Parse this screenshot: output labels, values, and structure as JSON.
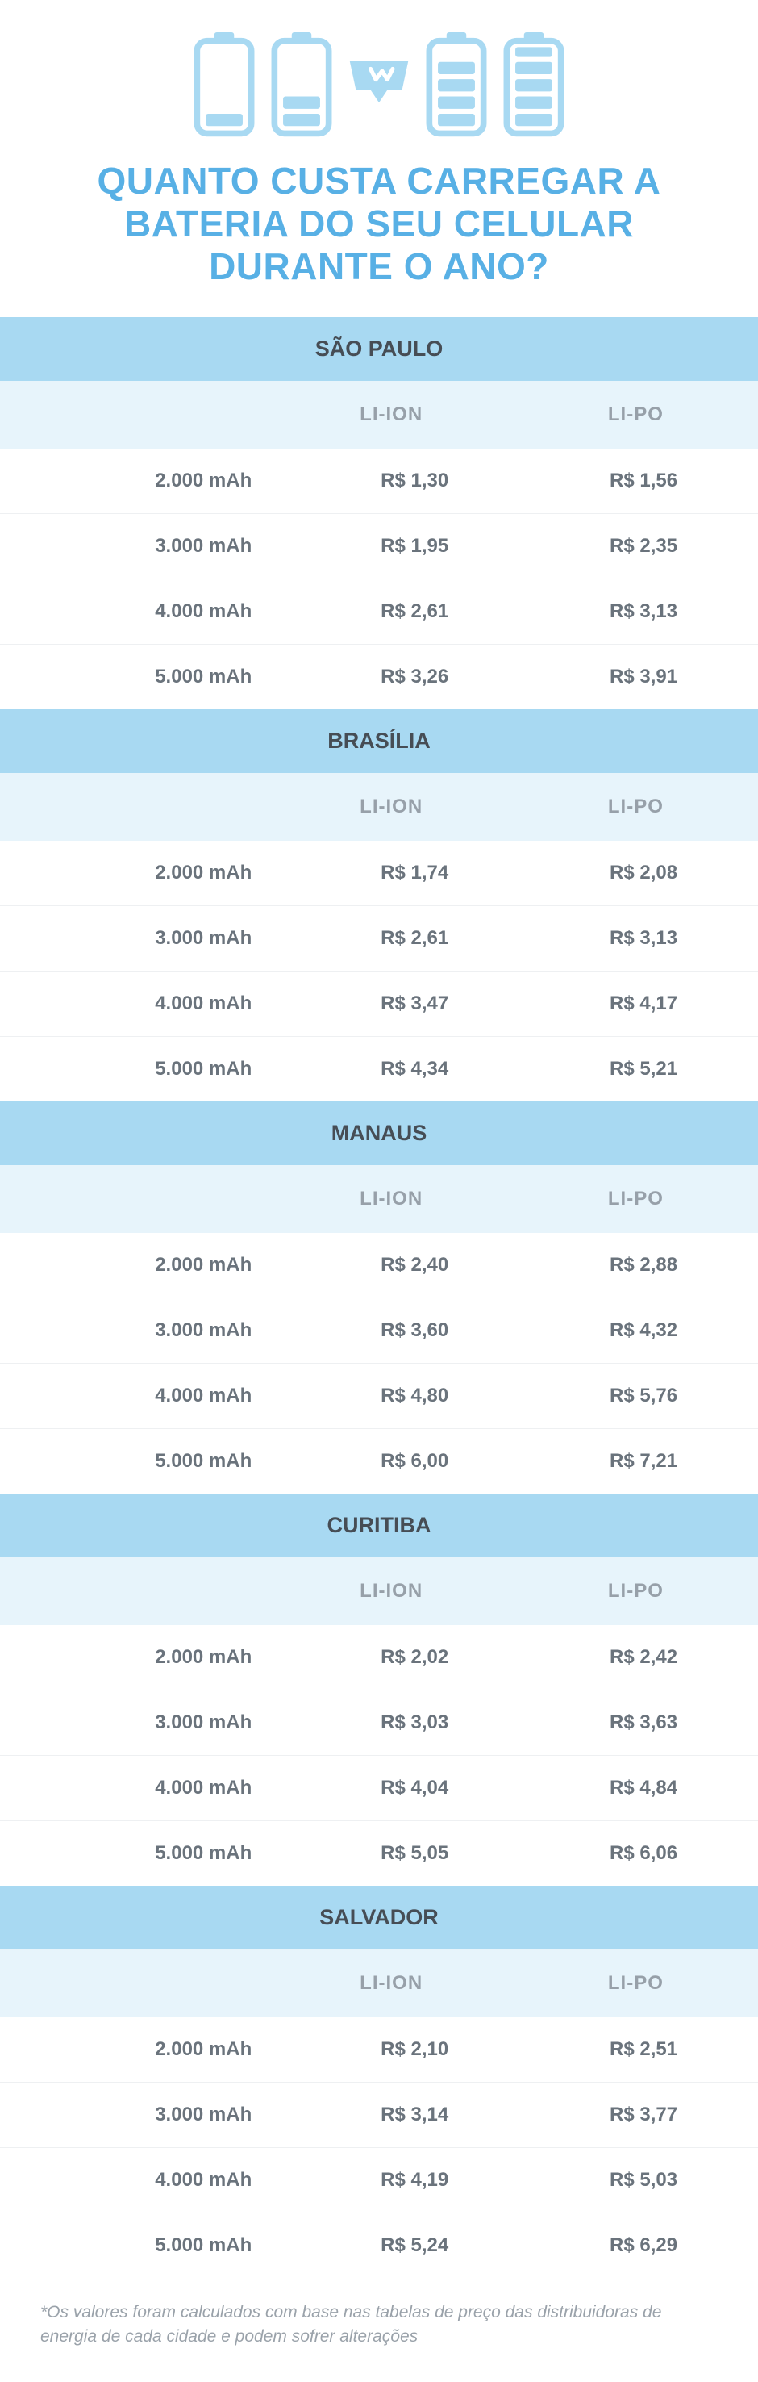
{
  "title": "QUANTO CUSTA CARREGAR A BATERIA DO SEU CELULAR DURANTE O ANO?",
  "colors": {
    "accent": "#58b0e5",
    "icon": "#a8d9f2",
    "band_bg": "#a8d9f2",
    "header_bg": "#e7f4fb",
    "text_dark": "#464d55",
    "text_mid": "#6a737c",
    "text_light": "#97a0a9",
    "footnote": "#9aa2aa",
    "row_border": "#eef0f2"
  },
  "columns": [
    "",
    "LI-ION",
    "LI-PO"
  ],
  "capacities": [
    "2.000 mAh",
    "3.000 mAh",
    "4.000 mAh",
    "5.000 mAh"
  ],
  "cities": [
    {
      "name": "SÃO PAULO",
      "rows": [
        [
          "2.000 mAh",
          "R$ 1,30",
          "R$ 1,56"
        ],
        [
          "3.000 mAh",
          "R$ 1,95",
          "R$ 2,35"
        ],
        [
          "4.000 mAh",
          "R$ 2,61",
          "R$ 3,13"
        ],
        [
          "5.000 mAh",
          "R$ 3,26",
          "R$ 3,91"
        ]
      ]
    },
    {
      "name": "BRASÍLIA",
      "rows": [
        [
          "2.000 mAh",
          "R$ 1,74",
          "R$ 2,08"
        ],
        [
          "3.000 mAh",
          "R$ 2,61",
          "R$ 3,13"
        ],
        [
          "4.000 mAh",
          "R$ 3,47",
          "R$ 4,17"
        ],
        [
          "5.000 mAh",
          "R$ 4,34",
          "R$ 5,21"
        ]
      ]
    },
    {
      "name": "MANAUS",
      "rows": [
        [
          "2.000 mAh",
          "R$ 2,40",
          "R$ 2,88"
        ],
        [
          "3.000 mAh",
          "R$ 3,60",
          "R$ 4,32"
        ],
        [
          "4.000 mAh",
          "R$ 4,80",
          "R$ 5,76"
        ],
        [
          "5.000 mAh",
          "R$ 6,00",
          "R$ 7,21"
        ]
      ]
    },
    {
      "name": "CURITIBA",
      "rows": [
        [
          "2.000 mAh",
          "R$ 2,02",
          "R$ 2,42"
        ],
        [
          "3.000 mAh",
          "R$ 3,03",
          "R$ 3,63"
        ],
        [
          "4.000 mAh",
          "R$ 4,04",
          "R$ 4,84"
        ],
        [
          "5.000 mAh",
          "R$ 5,05",
          "R$ 6,06"
        ]
      ]
    },
    {
      "name": "SALVADOR",
      "rows": [
        [
          "2.000 mAh",
          "R$ 2,10",
          "R$ 2,51"
        ],
        [
          "3.000 mAh",
          "R$ 3,14",
          "R$ 3,77"
        ],
        [
          "4.000 mAh",
          "R$ 4,19",
          "R$ 5,03"
        ],
        [
          "5.000 mAh",
          "R$ 5,24",
          "R$ 6,29"
        ]
      ]
    }
  ],
  "footnote": "*Os valores foram calculados com base nas tabelas de preço das distribuidoras de energia de cada cidade e podem sofrer alterações",
  "icons": {
    "battery_levels": [
      1,
      2,
      4,
      5
    ],
    "logo_between": true
  },
  "typography": {
    "title_fontsize": 46,
    "city_fontsize": 27,
    "header_fontsize": 24,
    "cell_fontsize": 24,
    "footnote_fontsize": 21
  }
}
